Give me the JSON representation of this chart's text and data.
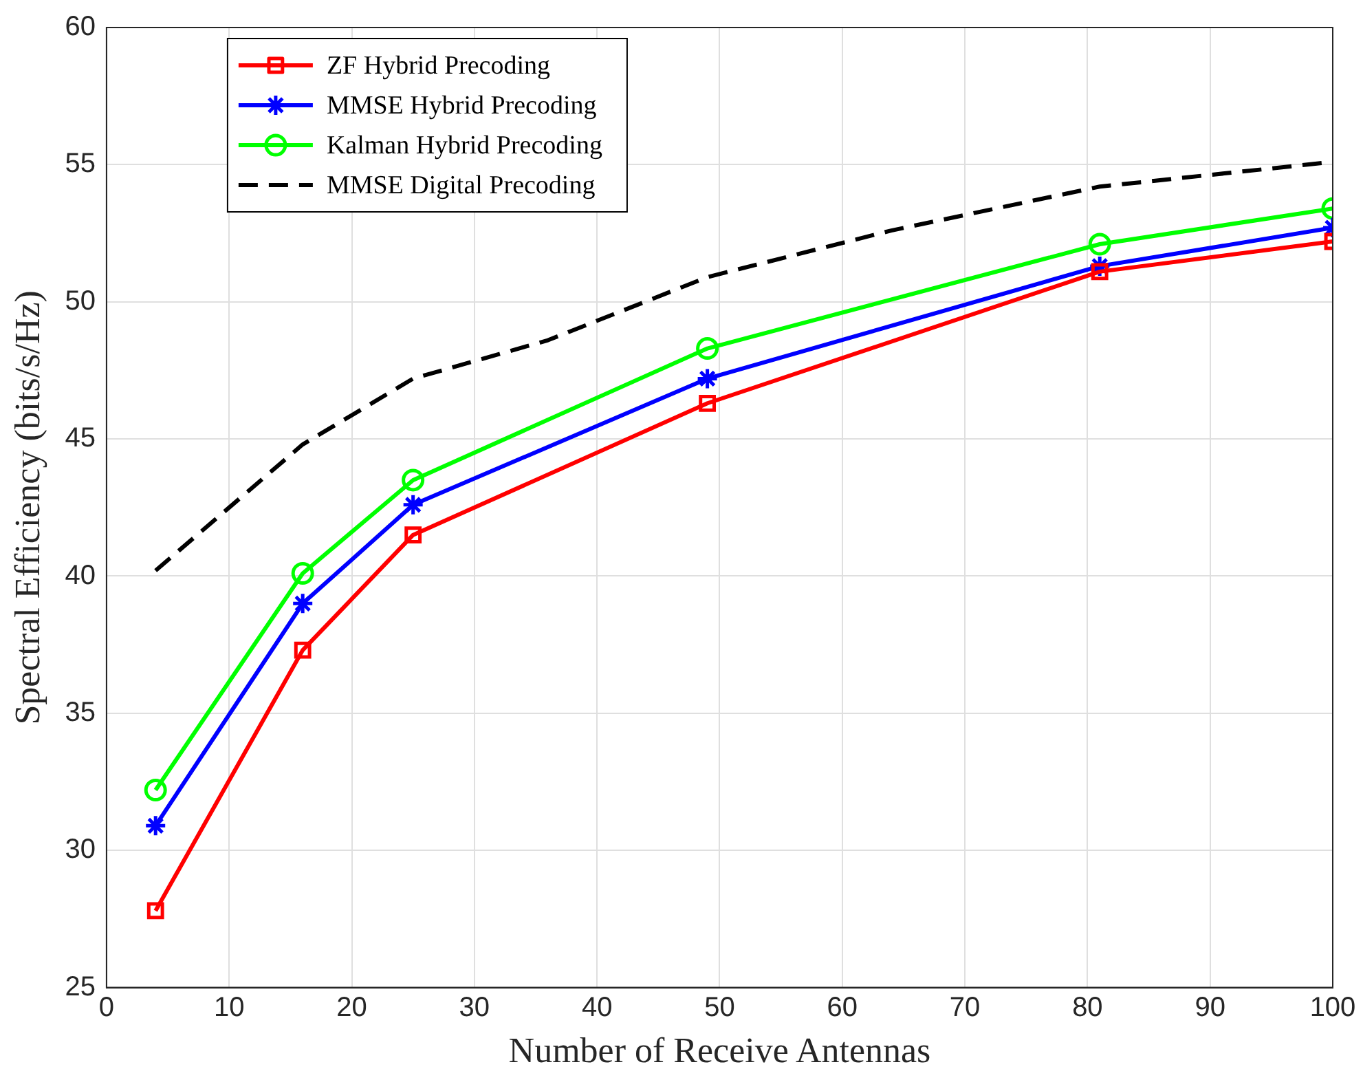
{
  "chart_data": {
    "type": "line",
    "xlabel": "Number of Receive Antennas",
    "ylabel": "Spectral Efficiency (bits/s/Hz)",
    "xlim": [
      0,
      100
    ],
    "xticks": [
      0,
      10,
      20,
      30,
      40,
      50,
      60,
      70,
      80,
      90,
      100
    ],
    "ylim": [
      25,
      60
    ],
    "yticks": [
      25,
      30,
      35,
      40,
      45,
      50,
      55,
      60
    ],
    "grid": true,
    "legend": "top left",
    "line_style": "solid",
    "series": [
      {
        "name": "ZF Hybrid Precoding",
        "color": "#ff0000",
        "marker": "square",
        "x": [
          4,
          16,
          25,
          49,
          81,
          100
        ],
        "values": [
          27.8,
          37.3,
          41.5,
          46.3,
          51.1,
          52.2
        ]
      },
      {
        "name": "MMSE Hybrid Precoding",
        "color": "#0000ff",
        "marker": "cross",
        "x": [
          4,
          16,
          25,
          49,
          81,
          100
        ],
        "values": [
          30.9,
          39.0,
          42.6,
          47.2,
          51.3,
          52.7
        ]
      },
      {
        "name": "Kalman Hybrid Precoding",
        "color": "#00ff00",
        "marker": "circle",
        "x": [
          4,
          16,
          25,
          49,
          81,
          100
        ],
        "values": [
          32.2,
          40.1,
          43.5,
          48.3,
          52.1,
          53.4
        ]
      },
      {
        "name": "MMSE Digital Precoding",
        "color": "#000000",
        "marker": "none",
        "line_style": "dashed",
        "x": [
          4,
          16,
          25,
          36,
          49,
          64,
          81,
          100
        ],
        "values": [
          40.2,
          44.8,
          47.2,
          48.6,
          50.9,
          52.6,
          54.2,
          55.1
        ]
      }
    ]
  }
}
